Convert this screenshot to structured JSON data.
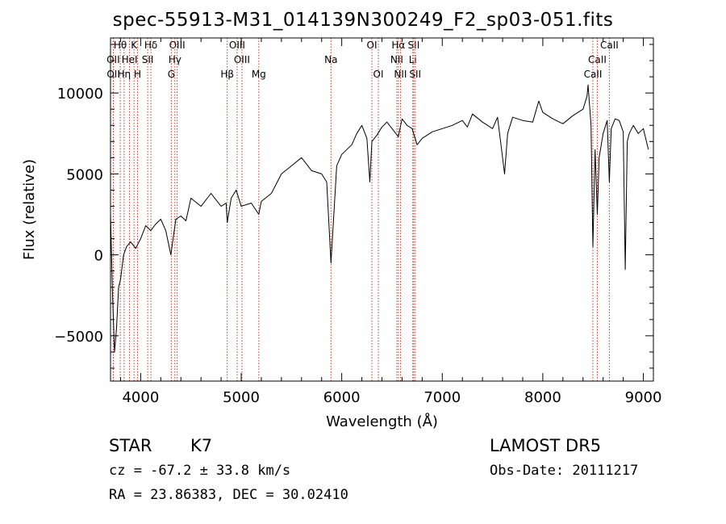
{
  "title": "spec-55913-M31_014139N300249_F2_sp03-051.fits",
  "info": {
    "object_class": "STAR",
    "subclass": "K7",
    "survey": "LAMOST DR5",
    "cz": "cz = -67.2 ± 33.8 km/s",
    "obs_date": "Obs-Date: 20111217",
    "radec": "RA =  23.86383, DEC =  30.02410"
  },
  "colors": {
    "spectrum": "#000000",
    "line_marker": "#c0392b",
    "axes": "#000000"
  },
  "chart_data": {
    "type": "line",
    "title": "spec-55913-M31_014139N300249_F2_sp03-051.fits",
    "xlabel": "Wavelength (Å)",
    "ylabel": "Flux (relative)",
    "xlim": [
      3700,
      9100
    ],
    "ylim": [
      -7800,
      13400
    ],
    "xticks": [
      4000,
      5000,
      6000,
      7000,
      8000,
      9000
    ],
    "yticks": [
      -5000,
      0,
      5000,
      10000
    ],
    "series": [
      {
        "x": [
          3700,
          3720,
          3740,
          3760,
          3780,
          3800,
          3830,
          3860,
          3900,
          3950,
          4000,
          4050,
          4100,
          4150,
          4200,
          4250,
          4300,
          4350,
          4400,
          4450,
          4500,
          4600,
          4700,
          4800,
          4850,
          4861,
          4900,
          4950,
          5000,
          5100,
          5175,
          5200,
          5300,
          5400,
          5500,
          5600,
          5700,
          5800,
          5850,
          5893,
          5950,
          6000,
          6100,
          6150,
          6200,
          6250,
          6280,
          6300,
          6350,
          6400,
          6450,
          6500,
          6563,
          6600,
          6650,
          6700,
          6750,
          6800,
          6900,
          7000,
          7100,
          7200,
          7250,
          7300,
          7400,
          7500,
          7550,
          7590,
          7620,
          7650,
          7700,
          7800,
          7900,
          7960,
          8000,
          8100,
          8200,
          8300,
          8400,
          8440,
          8450,
          8480,
          8498,
          8520,
          8542,
          8560,
          8600,
          8640,
          8662,
          8680,
          8720,
          8760,
          8800,
          8820,
          8840,
          8860,
          8900,
          8950,
          9000,
          9050
        ],
        "y": [
          2500,
          -2500,
          -6000,
          -4500,
          -2000,
          -1500,
          0,
          500,
          800,
          400,
          1000,
          1800,
          1500,
          1900,
          2200,
          1500,
          0,
          2200,
          2400,
          2100,
          3500,
          3000,
          3800,
          3000,
          3200,
          2000,
          3500,
          4000,
          3000,
          3200,
          2500,
          3300,
          3800,
          5000,
          5500,
          6000,
          5200,
          5000,
          4500,
          -500,
          5500,
          6200,
          6800,
          7500,
          8000,
          7200,
          4500,
          7000,
          7400,
          7900,
          8200,
          7800,
          7300,
          8400,
          8000,
          7800,
          6800,
          7200,
          7600,
          7800,
          8000,
          8300,
          7900,
          8700,
          8200,
          7800,
          8500,
          6500,
          5000,
          7500,
          8500,
          8300,
          8200,
          9500,
          8800,
          8400,
          8100,
          8600,
          9000,
          9800,
          10500,
          8000,
          500,
          6500,
          2500,
          6000,
          7500,
          8300,
          4500,
          7800,
          8400,
          8300,
          7600,
          -900,
          7000,
          7500,
          8000,
          7500,
          7800,
          6500
        ]
      }
    ],
    "line_markers": [
      {
        "label": "Hθ",
        "x": 3797,
        "row": 0
      },
      {
        "label": "K",
        "x": 3934,
        "row": 0
      },
      {
        "label": "Hδ",
        "x": 4102,
        "row": 0
      },
      {
        "label": "OIII",
        "x": 4363,
        "row": 0
      },
      {
        "label": "OIII",
        "x": 4959,
        "row": 0
      },
      {
        "label": "OI",
        "x": 6300,
        "row": 0
      },
      {
        "label": "Hα",
        "x": 6563,
        "row": 0
      },
      {
        "label": "SII",
        "x": 6716,
        "row": 0
      },
      {
        "label": "CaII",
        "x": 8662,
        "row": 0
      },
      {
        "label": "OII",
        "x": 3727,
        "row": 1
      },
      {
        "label": "HeI",
        "x": 3889,
        "row": 1
      },
      {
        "label": "SII",
        "x": 4070,
        "row": 1
      },
      {
        "label": "Hγ",
        "x": 4340,
        "row": 1
      },
      {
        "label": "OIII",
        "x": 5007,
        "row": 1
      },
      {
        "label": "Na",
        "x": 5893,
        "row": 1
      },
      {
        "label": "NII",
        "x": 6548,
        "row": 1
      },
      {
        "label": "Li",
        "x": 6707,
        "row": 1
      },
      {
        "label": "CaII",
        "x": 8542,
        "row": 1
      },
      {
        "label": "OII",
        "x": 3729,
        "row": 2
      },
      {
        "label": "Hη",
        "x": 3835,
        "row": 2
      },
      {
        "label": "H",
        "x": 3969,
        "row": 2
      },
      {
        "label": "G",
        "x": 4305,
        "row": 2
      },
      {
        "label": "Hβ",
        "x": 4861,
        "row": 2
      },
      {
        "label": "Mg",
        "x": 5175,
        "row": 2
      },
      {
        "label": "OI",
        "x": 6364,
        "row": 2
      },
      {
        "label": "NII",
        "x": 6584,
        "row": 2
      },
      {
        "label": "SII",
        "x": 6731,
        "row": 2
      },
      {
        "label": "CaII",
        "x": 8498,
        "row": 2
      }
    ]
  }
}
